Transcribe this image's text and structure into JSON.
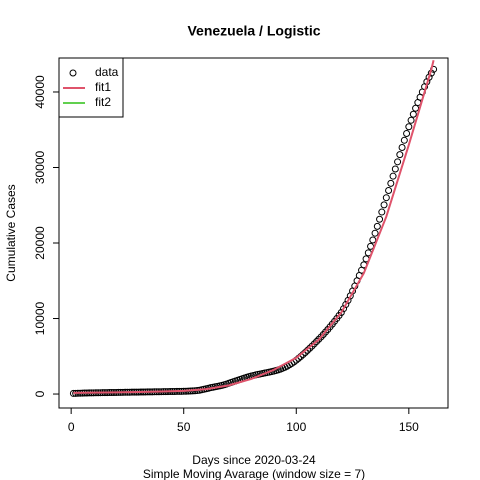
{
  "chart_data": {
    "type": "scatter",
    "title": "Venezuela / Logistic",
    "xlabel": "Days since 2020-03-24",
    "subtitle": "Simple Moving Avarage (window size = 7)",
    "ylabel": "Cumulative Cases",
    "xlim": [
      -5.4,
      167.4
    ],
    "ylim": [
      -1850,
      44500
    ],
    "xticks": [
      0,
      50,
      100,
      150
    ],
    "yticks": [
      0,
      10000,
      20000,
      30000,
      40000
    ],
    "legend": "topleft",
    "series": [
      {
        "name": "data",
        "color": "#000000",
        "style": "points",
        "x": [
          1,
          2,
          3,
          4,
          5,
          6,
          7,
          8,
          9,
          10,
          11,
          12,
          13,
          14,
          15,
          16,
          17,
          18,
          19,
          20,
          21,
          22,
          23,
          24,
          25,
          26,
          27,
          28,
          29,
          30,
          31,
          32,
          33,
          34,
          35,
          36,
          37,
          38,
          39,
          40,
          41,
          42,
          43,
          44,
          45,
          46,
          47,
          48,
          49,
          50,
          51,
          52,
          53,
          54,
          55,
          56,
          57,
          58,
          59,
          60,
          61,
          62,
          63,
          64,
          65,
          66,
          67,
          68,
          69,
          70,
          71,
          72,
          73,
          74,
          75,
          76,
          77,
          78,
          79,
          80,
          81,
          82,
          83,
          84,
          85,
          86,
          87,
          88,
          89,
          90,
          91,
          92,
          93,
          94,
          95,
          96,
          97,
          98,
          99,
          100,
          101,
          102,
          103,
          104,
          105,
          106,
          107,
          108,
          109,
          110,
          111,
          112,
          113,
          114,
          115,
          116,
          117,
          118,
          119,
          120,
          121,
          122,
          123,
          124,
          125,
          126,
          127,
          128,
          129,
          130,
          131,
          132,
          133,
          134,
          135,
          136,
          137,
          138,
          139,
          140,
          141,
          142,
          143,
          144,
          145,
          146,
          147,
          148,
          149,
          150,
          151,
          152,
          153,
          154,
          155,
          156,
          157,
          158,
          159,
          160,
          161
        ],
        "values": [
          80,
          90,
          100,
          110,
          120,
          130,
          140,
          150,
          155,
          160,
          165,
          170,
          175,
          180,
          185,
          190,
          195,
          200,
          205,
          210,
          215,
          220,
          225,
          230,
          235,
          240,
          245,
          250,
          255,
          260,
          265,
          270,
          275,
          280,
          285,
          290,
          295,
          300,
          305,
          310,
          315,
          320,
          325,
          330,
          335,
          340,
          345,
          350,
          355,
          360,
          370,
          380,
          395,
          410,
          430,
          460,
          500,
          560,
          630,
          700,
          770,
          840,
          900,
          960,
          1020,
          1080,
          1150,
          1230,
          1320,
          1420,
          1520,
          1620,
          1720,
          1820,
          1920,
          2020,
          2120,
          2220,
          2300,
          2380,
          2460,
          2530,
          2600,
          2660,
          2720,
          2780,
          2840,
          2900,
          2960,
          3030,
          3110,
          3200,
          3300,
          3420,
          3550,
          3700,
          3870,
          4050,
          4250,
          4480,
          4720,
          4970,
          5230,
          5500,
          5780,
          6060,
          6350,
          6650,
          6950,
          7250,
          7560,
          7880,
          8210,
          8550,
          8900,
          9260,
          9630,
          10010,
          10400,
          10800,
          11300,
          11850,
          12400,
          13000,
          13650,
          14300,
          15000,
          15700,
          16400,
          17100,
          17900,
          18700,
          19550,
          20400,
          21300,
          22200,
          23150,
          24100,
          25050,
          26000,
          26950,
          27900,
          28850,
          29800,
          30750,
          31700,
          32650,
          33600,
          34500,
          35400,
          36250,
          37050,
          37850,
          38600,
          39300,
          40000,
          40700,
          41350,
          41950,
          42500,
          43000
        ]
      },
      {
        "name": "fit1",
        "color": "#DF536B",
        "style": "line",
        "x": [
          1,
          10,
          20,
          30,
          40,
          50,
          60,
          70,
          80,
          90,
          100,
          110,
          120,
          130,
          140,
          150,
          160,
          161
        ],
        "values": [
          150,
          180,
          220,
          270,
          330,
          420,
          650,
          1150,
          2000,
          3200,
          4800,
          7200,
          10800,
          16000,
          23500,
          33000,
          43000,
          44200
        ]
      },
      {
        "name": "fit2",
        "color": "#61D04F",
        "style": "line"
      }
    ]
  }
}
